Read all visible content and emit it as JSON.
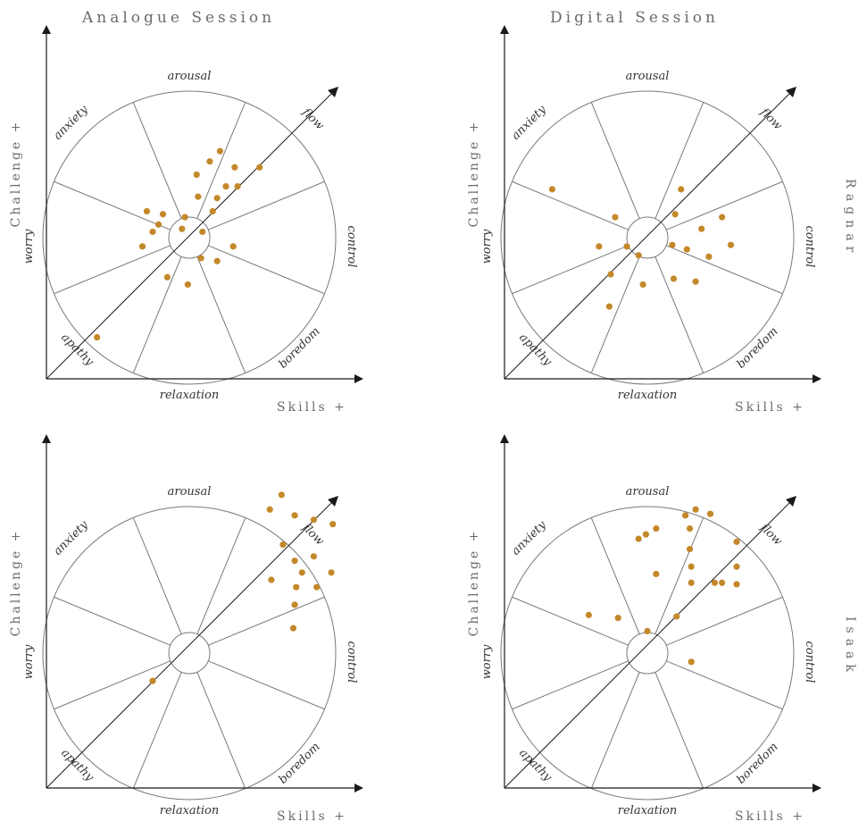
{
  "column_titles": [
    "Analogue Session",
    "Digital Session"
  ],
  "row_titles": [
    "Ragnar",
    "Isaak"
  ],
  "colors": {
    "dot": "#c4882a",
    "line": "#7a7a7a",
    "axis": "#1a1a1a",
    "text": "#6b6b6b"
  },
  "chart_data": [
    {
      "type": "scatter",
      "session": "Analogue Session",
      "participant": "Ragnar",
      "xlabel": "Skills +",
      "ylabel": "Challenge +",
      "zone_labels": [
        "arousal",
        "flow",
        "control",
        "boredom",
        "relaxation",
        "apathy",
        "worry",
        "anxiety"
      ],
      "xlim": [
        -1,
        1
      ],
      "ylim": [
        -1,
        1
      ],
      "points": [
        [
          0.14,
          0.52
        ],
        [
          0.31,
          0.48
        ],
        [
          0.21,
          0.59
        ],
        [
          0.05,
          0.43
        ],
        [
          0.48,
          0.48
        ],
        [
          0.33,
          0.35
        ],
        [
          0.25,
          0.35
        ],
        [
          0.06,
          0.28
        ],
        [
          0.19,
          0.27
        ],
        [
          -0.18,
          0.16
        ],
        [
          -0.03,
          0.14
        ],
        [
          -0.29,
          0.18
        ],
        [
          -0.21,
          0.09
        ],
        [
          -0.25,
          0.04
        ],
        [
          0.16,
          0.18
        ],
        [
          -0.05,
          0.06
        ],
        [
          0.09,
          0.04
        ],
        [
          0.3,
          -0.06
        ],
        [
          -0.32,
          -0.06
        ],
        [
          0.08,
          -0.14
        ],
        [
          0.19,
          -0.16
        ],
        [
          -0.15,
          -0.27
        ],
        [
          -0.01,
          -0.32
        ],
        [
          -0.63,
          -0.68
        ]
      ]
    },
    {
      "type": "scatter",
      "session": "Digital Session",
      "participant": "Ragnar",
      "xlabel": "Skills +",
      "ylabel": "Challenge +",
      "zone_labels": [
        "arousal",
        "flow",
        "control",
        "boredom",
        "relaxation",
        "apathy",
        "worry",
        "anxiety"
      ],
      "xlim": [
        -1,
        1
      ],
      "ylim": [
        -1,
        1
      ],
      "points": [
        [
          -0.65,
          0.33
        ],
        [
          -0.22,
          0.14
        ],
        [
          0.23,
          0.33
        ],
        [
          0.19,
          0.16
        ],
        [
          0.51,
          0.14
        ],
        [
          0.37,
          0.06
        ],
        [
          -0.33,
          -0.06
        ],
        [
          -0.14,
          -0.06
        ],
        [
          -0.06,
          -0.12
        ],
        [
          0.17,
          -0.05
        ],
        [
          0.27,
          -0.08
        ],
        [
          0.42,
          -0.13
        ],
        [
          0.57,
          -0.05
        ],
        [
          -0.25,
          -0.25
        ],
        [
          0.18,
          -0.28
        ],
        [
          0.33,
          -0.3
        ],
        [
          -0.03,
          -0.32
        ],
        [
          -0.26,
          -0.47
        ]
      ]
    },
    {
      "type": "scatter",
      "session": "Analogue Session",
      "participant": "Isaak",
      "xlabel": "Skills +",
      "ylabel": "Challenge +",
      "zone_labels": [
        "arousal",
        "flow",
        "control",
        "boredom",
        "relaxation",
        "apathy",
        "worry",
        "anxiety"
      ],
      "xlim": [
        -1,
        1
      ],
      "ylim": [
        -1,
        1
      ],
      "points": [
        [
          0.63,
          1.08
        ],
        [
          0.55,
          0.98
        ],
        [
          0.72,
          0.94
        ],
        [
          0.85,
          0.91
        ],
        [
          0.98,
          0.88
        ],
        [
          0.64,
          0.74
        ],
        [
          0.72,
          0.63
        ],
        [
          0.85,
          0.66
        ],
        [
          0.77,
          0.55
        ],
        [
          0.97,
          0.55
        ],
        [
          0.56,
          0.5
        ],
        [
          0.73,
          0.45
        ],
        [
          0.87,
          0.45
        ],
        [
          0.72,
          0.33
        ],
        [
          0.71,
          0.17
        ],
        [
          -0.25,
          -0.19
        ]
      ]
    },
    {
      "type": "scatter",
      "session": "Digital Session",
      "participant": "Isaak",
      "xlabel": "Skills +",
      "ylabel": "Challenge +",
      "zone_labels": [
        "arousal",
        "flow",
        "control",
        "boredom",
        "relaxation",
        "apathy",
        "worry",
        "anxiety"
      ],
      "xlim": [
        -1,
        1
      ],
      "ylim": [
        -1,
        1
      ],
      "points": [
        [
          0.33,
          0.98
        ],
        [
          0.26,
          0.94
        ],
        [
          0.43,
          0.95
        ],
        [
          0.06,
          0.85
        ],
        [
          0.29,
          0.85
        ],
        [
          -0.01,
          0.81
        ],
        [
          -0.06,
          0.78
        ],
        [
          0.29,
          0.71
        ],
        [
          0.61,
          0.76
        ],
        [
          0.3,
          0.59
        ],
        [
          0.61,
          0.59
        ],
        [
          0.51,
          0.48
        ],
        [
          0.3,
          0.48
        ],
        [
          0.46,
          0.48
        ],
        [
          0.61,
          0.47
        ],
        [
          0.06,
          0.54
        ],
        [
          -0.4,
          0.26
        ],
        [
          -0.2,
          0.24
        ],
        [
          0.2,
          0.25
        ],
        [
          0.3,
          -0.06
        ],
        [
          0.0,
          0.15
        ]
      ]
    }
  ]
}
